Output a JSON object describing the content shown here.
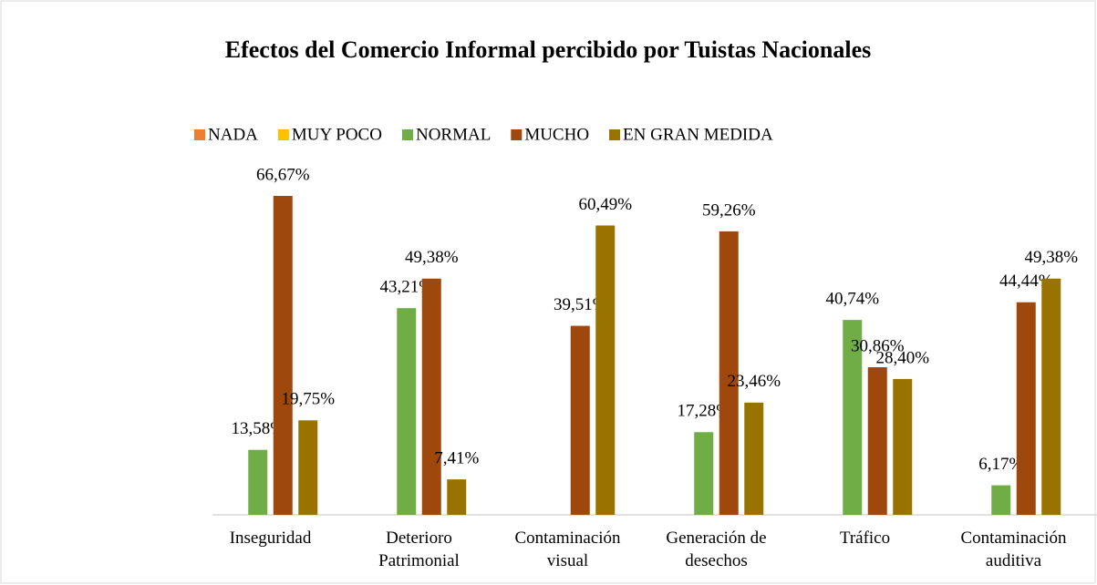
{
  "chart_data": {
    "type": "bar",
    "title": "Efectos del Comercio Informal percibido por Tuistas Nacionales",
    "categories": [
      "Inseguridad",
      "Deterioro Patrimonial",
      "Contaminación visual",
      "Generación de desechos",
      "Tráfico",
      "Contaminación auditiva"
    ],
    "series": [
      {
        "name": "NADA",
        "color": "#ed7d31",
        "values": [
          null,
          null,
          null,
          null,
          null,
          null
        ]
      },
      {
        "name": "MUY POCO",
        "color": "#ffc000",
        "values": [
          null,
          null,
          null,
          null,
          null,
          null
        ]
      },
      {
        "name": "NORMAL",
        "color": "#70ad47",
        "values": [
          13.58,
          43.21,
          null,
          17.28,
          40.74,
          6.17
        ],
        "value_labels": [
          "13,58%",
          "43,21%",
          null,
          "17,28%",
          "40,74%",
          "6,17%"
        ]
      },
      {
        "name": "MUCHO",
        "color": "#9e480e",
        "values": [
          66.67,
          49.38,
          39.51,
          59.26,
          30.86,
          44.44
        ],
        "value_labels": [
          "66,67%",
          "49,38%",
          "39,51%",
          "59,26%",
          "30,86%",
          "44,44%"
        ]
      },
      {
        "name": "EN GRAN MEDIDA",
        "color": "#997300",
        "values": [
          19.75,
          7.41,
          60.49,
          23.46,
          28.4,
          49.38
        ],
        "value_labels": [
          "19,75%",
          "7,41%",
          "60,49%",
          "23,46%",
          "28,40%",
          "49,38%"
        ]
      }
    ],
    "legend": "top"
  }
}
